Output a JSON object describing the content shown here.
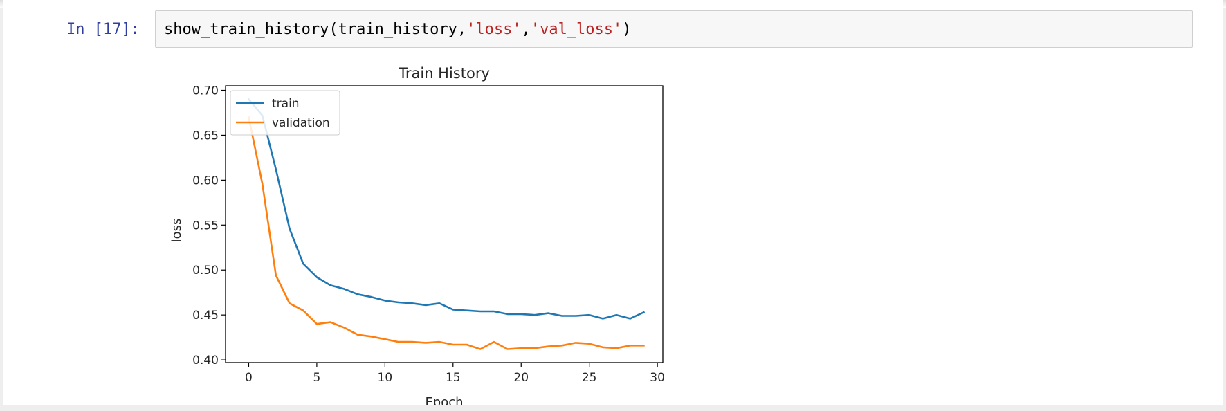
{
  "cell": {
    "prompt": "In [17]:",
    "code": {
      "func": "show_train_history(train_history,",
      "arg1": "'loss'",
      "comma": ",",
      "arg2": "'val_loss'",
      "close": ")"
    }
  },
  "chart_data": {
    "type": "line",
    "title": "Train History",
    "xlabel": "Epoch",
    "ylabel": "loss",
    "xlim": [
      -1.7,
      30.4
    ],
    "ylim": [
      0.397,
      0.705
    ],
    "xticks": [
      0,
      5,
      10,
      15,
      20,
      25,
      30
    ],
    "yticks": [
      0.4,
      0.45,
      0.5,
      0.55,
      0.6,
      0.65,
      0.7
    ],
    "grid": false,
    "legend_position": "top-left",
    "series": [
      {
        "name": "train",
        "color": "#1f77b4",
        "x": [
          0,
          1,
          2,
          3,
          4,
          5,
          6,
          7,
          8,
          9,
          10,
          11,
          12,
          13,
          14,
          15,
          16,
          17,
          18,
          19,
          20,
          21,
          22,
          23,
          24,
          25,
          26,
          27,
          28,
          29
        ],
        "values": [
          0.69,
          0.672,
          0.612,
          0.546,
          0.507,
          0.492,
          0.483,
          0.479,
          0.473,
          0.47,
          0.466,
          0.464,
          0.463,
          0.461,
          0.463,
          0.456,
          0.455,
          0.454,
          0.454,
          0.451,
          0.451,
          0.45,
          0.452,
          0.449,
          0.449,
          0.45,
          0.446,
          0.45,
          0.446,
          0.453
        ]
      },
      {
        "name": "validation",
        "color": "#ff7f0e",
        "x": [
          0,
          1,
          2,
          3,
          4,
          5,
          6,
          7,
          8,
          9,
          10,
          11,
          12,
          13,
          14,
          15,
          16,
          17,
          18,
          19,
          20,
          21,
          22,
          23,
          24,
          25,
          26,
          27,
          28,
          29
        ],
        "values": [
          0.67,
          0.596,
          0.494,
          0.463,
          0.455,
          0.44,
          0.442,
          0.436,
          0.428,
          0.426,
          0.423,
          0.42,
          0.42,
          0.419,
          0.42,
          0.417,
          0.417,
          0.412,
          0.42,
          0.412,
          0.413,
          0.413,
          0.415,
          0.416,
          0.419,
          0.418,
          0.414,
          0.413,
          0.416,
          0.416
        ]
      }
    ]
  }
}
